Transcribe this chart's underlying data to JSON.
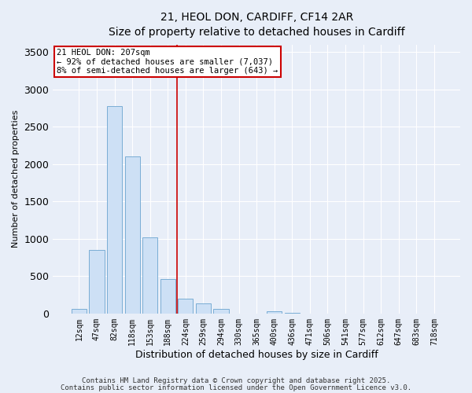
{
  "title_line1": "21, HEOL DON, CARDIFF, CF14 2AR",
  "title_line2": "Size of property relative to detached houses in Cardiff",
  "xlabel": "Distribution of detached houses by size in Cardiff",
  "ylabel": "Number of detached properties",
  "bar_labels": [
    "12sqm",
    "47sqm",
    "82sqm",
    "118sqm",
    "153sqm",
    "188sqm",
    "224sqm",
    "259sqm",
    "294sqm",
    "330sqm",
    "365sqm",
    "400sqm",
    "436sqm",
    "471sqm",
    "506sqm",
    "541sqm",
    "577sqm",
    "612sqm",
    "647sqm",
    "683sqm",
    "718sqm"
  ],
  "bar_values": [
    60,
    850,
    2780,
    2100,
    1020,
    460,
    200,
    140,
    60,
    0,
    0,
    25,
    10,
    0,
    0,
    0,
    0,
    0,
    0,
    0,
    0
  ],
  "bar_color": "#cde0f5",
  "bar_edge_color": "#7aadd4",
  "vline_x": 5.5,
  "vline_color": "#cc0000",
  "annotation_text": "21 HEOL DON: 207sqm\n← 92% of detached houses are smaller (7,037)\n8% of semi-detached houses are larger (643) →",
  "annotation_box_facecolor": "#ffffff",
  "annotation_box_edge": "#cc0000",
  "ylim": [
    0,
    3600
  ],
  "yticks": [
    0,
    500,
    1000,
    1500,
    2000,
    2500,
    3000,
    3500
  ],
  "footer_line1": "Contains HM Land Registry data © Crown copyright and database right 2025.",
  "footer_line2": "Contains public sector information licensed under the Open Government Licence v3.0.",
  "bg_color": "#e8eef8",
  "grid_color": "#ffffff"
}
